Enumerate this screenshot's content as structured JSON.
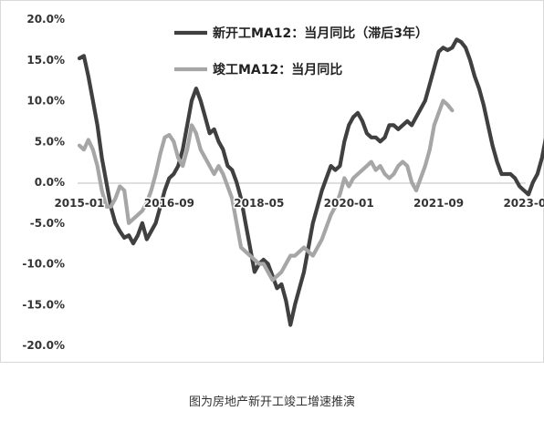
{
  "caption": "图为房地产新开工竣工增速推演",
  "chart_data": {
    "type": "line",
    "title": "",
    "xlabel": "",
    "ylabel": "",
    "ylim": [
      -0.2,
      0.2
    ],
    "y_ticks": [
      {
        "value": 0.2,
        "label": "20.0%"
      },
      {
        "value": 0.15,
        "label": "15.0%"
      },
      {
        "value": 0.1,
        "label": "10.0%"
      },
      {
        "value": 0.05,
        "label": "5.0%"
      },
      {
        "value": 0.0,
        "label": "0.0%"
      },
      {
        "value": -0.05,
        "label": "-5.0%"
      },
      {
        "value": -0.1,
        "label": "-10.0%"
      },
      {
        "value": -0.15,
        "label": "-15.0%"
      },
      {
        "value": -0.2,
        "label": "-20.0%"
      }
    ],
    "x_ticks": [
      "2015-01",
      "2016-09",
      "2018-05",
      "2020-01",
      "2021-09",
      "2023-05"
    ],
    "legend_position": "top-right",
    "series": [
      {
        "name": "新开工MA12：当月同比（滞后3年）",
        "color": "#404040",
        "points": [
          [
            "2015-01",
            0.152
          ],
          [
            "2015-02",
            0.155
          ],
          [
            "2015-03",
            0.13
          ],
          [
            "2015-04",
            0.1
          ],
          [
            "2015-05",
            0.07
          ],
          [
            "2015-06",
            0.03
          ],
          [
            "2015-07",
            0.0
          ],
          [
            "2015-08",
            -0.03
          ],
          [
            "2015-09",
            -0.05
          ],
          [
            "2015-10",
            -0.06
          ],
          [
            "2015-11",
            -0.068
          ],
          [
            "2015-12",
            -0.065
          ],
          [
            "2016-01",
            -0.075
          ],
          [
            "2016-02",
            -0.065
          ],
          [
            "2016-03",
            -0.05
          ],
          [
            "2016-04",
            -0.07
          ],
          [
            "2016-05",
            -0.06
          ],
          [
            "2016-06",
            -0.05
          ],
          [
            "2016-07",
            -0.03
          ],
          [
            "2016-08",
            -0.01
          ],
          [
            "2016-09",
            0.005
          ],
          [
            "2016-10",
            0.01
          ],
          [
            "2016-11",
            0.02
          ],
          [
            "2016-12",
            0.04
          ],
          [
            "2017-01",
            0.07
          ],
          [
            "2017-02",
            0.1
          ],
          [
            "2017-03",
            0.115
          ],
          [
            "2017-04",
            0.1
          ],
          [
            "2017-05",
            0.08
          ],
          [
            "2017-06",
            0.06
          ],
          [
            "2017-07",
            0.065
          ],
          [
            "2017-08",
            0.05
          ],
          [
            "2017-09",
            0.04
          ],
          [
            "2017-10",
            0.02
          ],
          [
            "2017-11",
            0.015
          ],
          [
            "2017-12",
            0.0
          ],
          [
            "2018-01",
            -0.02
          ],
          [
            "2018-02",
            -0.05
          ],
          [
            "2018-03",
            -0.08
          ],
          [
            "2018-04",
            -0.11
          ],
          [
            "2018-05",
            -0.1
          ],
          [
            "2018-06",
            -0.095
          ],
          [
            "2018-07",
            -0.1
          ],
          [
            "2018-08",
            -0.115
          ],
          [
            "2018-09",
            -0.13
          ],
          [
            "2018-10",
            -0.125
          ],
          [
            "2018-11",
            -0.145
          ],
          [
            "2018-12",
            -0.175
          ],
          [
            "2019-01",
            -0.15
          ],
          [
            "2019-02",
            -0.13
          ],
          [
            "2019-03",
            -0.11
          ],
          [
            "2019-04",
            -0.08
          ],
          [
            "2019-05",
            -0.05
          ],
          [
            "2019-06",
            -0.03
          ],
          [
            "2019-07",
            -0.01
          ],
          [
            "2019-08",
            0.005
          ],
          [
            "2019-09",
            0.02
          ],
          [
            "2019-10",
            0.015
          ],
          [
            "2019-11",
            0.02
          ],
          [
            "2019-12",
            0.05
          ],
          [
            "2020-01",
            0.07
          ],
          [
            "2020-02",
            0.08
          ],
          [
            "2020-03",
            0.085
          ],
          [
            "2020-04",
            0.075
          ],
          [
            "2020-05",
            0.06
          ],
          [
            "2020-06",
            0.055
          ],
          [
            "2020-07",
            0.055
          ],
          [
            "2020-08",
            0.05
          ],
          [
            "2020-09",
            0.055
          ],
          [
            "2020-10",
            0.07
          ],
          [
            "2020-11",
            0.07
          ],
          [
            "2020-12",
            0.065
          ],
          [
            "2021-01",
            0.07
          ],
          [
            "2021-02",
            0.075
          ],
          [
            "2021-03",
            0.07
          ],
          [
            "2021-04",
            0.08
          ],
          [
            "2021-05",
            0.09
          ],
          [
            "2021-06",
            0.1
          ],
          [
            "2021-07",
            0.12
          ],
          [
            "2021-08",
            0.14
          ],
          [
            "2021-09",
            0.16
          ],
          [
            "2021-10",
            0.165
          ],
          [
            "2021-11",
            0.162
          ],
          [
            "2021-12",
            0.165
          ],
          [
            "2022-01",
            0.175
          ],
          [
            "2022-02",
            0.172
          ],
          [
            "2022-03",
            0.165
          ],
          [
            "2022-04",
            0.15
          ],
          [
            "2022-05",
            0.13
          ],
          [
            "2022-06",
            0.115
          ],
          [
            "2022-07",
            0.095
          ],
          [
            "2022-08",
            0.07
          ],
          [
            "2022-09",
            0.045
          ],
          [
            "2022-10",
            0.025
          ],
          [
            "2022-11",
            0.01
          ],
          [
            "2022-12",
            0.01
          ],
          [
            "2023-01",
            0.01
          ],
          [
            "2023-02",
            0.005
          ],
          [
            "2023-03",
            -0.005
          ],
          [
            "2023-04",
            -0.01
          ],
          [
            "2023-05",
            -0.015
          ],
          [
            "2023-06",
            0.0
          ],
          [
            "2023-07",
            0.01
          ],
          [
            "2023-08",
            0.03
          ],
          [
            "2023-09",
            0.058
          ],
          [
            "2023-10",
            0.058
          ],
          [
            "2023-11",
            0.055
          ],
          [
            "2023-12",
            0.03
          ],
          [
            "2024-01",
            0.0
          ],
          [
            "2024-02",
            -0.03
          ],
          [
            "2024-03",
            -0.045
          ]
        ]
      },
      {
        "name": "竣工MA12：当月同比",
        "color": "#a6a6a6",
        "points": [
          [
            "2015-01",
            0.045
          ],
          [
            "2015-02",
            0.04
          ],
          [
            "2015-03",
            0.052
          ],
          [
            "2015-04",
            0.04
          ],
          [
            "2015-05",
            0.02
          ],
          [
            "2015-06",
            -0.01
          ],
          [
            "2015-07",
            -0.03
          ],
          [
            "2015-08",
            -0.03
          ],
          [
            "2015-09",
            -0.02
          ],
          [
            "2015-10",
            -0.005
          ],
          [
            "2015-11",
            -0.01
          ],
          [
            "2015-12",
            -0.05
          ],
          [
            "2016-01",
            -0.045
          ],
          [
            "2016-02",
            -0.04
          ],
          [
            "2016-03",
            -0.035
          ],
          [
            "2016-04",
            -0.025
          ],
          [
            "2016-05",
            -0.01
          ],
          [
            "2016-06",
            0.01
          ],
          [
            "2016-07",
            0.035
          ],
          [
            "2016-08",
            0.055
          ],
          [
            "2016-09",
            0.058
          ],
          [
            "2016-10",
            0.05
          ],
          [
            "2016-11",
            0.03
          ],
          [
            "2016-12",
            0.02
          ],
          [
            "2017-01",
            0.04
          ],
          [
            "2017-02",
            0.07
          ],
          [
            "2017-03",
            0.06
          ],
          [
            "2017-04",
            0.04
          ],
          [
            "2017-05",
            0.03
          ],
          [
            "2017-06",
            0.02
          ],
          [
            "2017-07",
            0.01
          ],
          [
            "2017-08",
            0.02
          ],
          [
            "2017-09",
            0.01
          ],
          [
            "2017-10",
            -0.005
          ],
          [
            "2017-11",
            -0.02
          ],
          [
            "2017-12",
            -0.05
          ],
          [
            "2018-01",
            -0.08
          ],
          [
            "2018-02",
            -0.085
          ],
          [
            "2018-03",
            -0.09
          ],
          [
            "2018-04",
            -0.095
          ],
          [
            "2018-05",
            -0.1
          ],
          [
            "2018-06",
            -0.1
          ],
          [
            "2018-07",
            -0.11
          ],
          [
            "2018-08",
            -0.12
          ],
          [
            "2018-09",
            -0.115
          ],
          [
            "2018-10",
            -0.11
          ],
          [
            "2018-11",
            -0.1
          ],
          [
            "2018-12",
            -0.09
          ],
          [
            "2019-01",
            -0.09
          ],
          [
            "2019-02",
            -0.085
          ],
          [
            "2019-03",
            -0.08
          ],
          [
            "2019-04",
            -0.085
          ],
          [
            "2019-05",
            -0.09
          ],
          [
            "2019-06",
            -0.08
          ],
          [
            "2019-07",
            -0.07
          ],
          [
            "2019-08",
            -0.055
          ],
          [
            "2019-09",
            -0.04
          ],
          [
            "2019-10",
            -0.03
          ],
          [
            "2019-11",
            -0.015
          ],
          [
            "2019-12",
            0.005
          ],
          [
            "2020-01",
            -0.005
          ],
          [
            "2020-02",
            0.005
          ],
          [
            "2020-03",
            0.01
          ],
          [
            "2020-04",
            0.015
          ],
          [
            "2020-05",
            0.02
          ],
          [
            "2020-06",
            0.025
          ],
          [
            "2020-07",
            0.015
          ],
          [
            "2020-08",
            0.02
          ],
          [
            "2020-09",
            0.01
          ],
          [
            "2020-10",
            0.005
          ],
          [
            "2020-11",
            0.01
          ],
          [
            "2020-12",
            0.02
          ],
          [
            "2021-01",
            0.025
          ],
          [
            "2021-02",
            0.02
          ],
          [
            "2021-03",
            0.0
          ],
          [
            "2021-04",
            -0.01
          ],
          [
            "2021-05",
            0.005
          ],
          [
            "2021-06",
            0.02
          ],
          [
            "2021-07",
            0.04
          ],
          [
            "2021-08",
            0.07
          ],
          [
            "2021-09",
            0.085
          ],
          [
            "2021-10",
            0.1
          ],
          [
            "2021-11",
            0.095
          ],
          [
            "2021-12",
            0.088
          ]
        ]
      }
    ]
  }
}
